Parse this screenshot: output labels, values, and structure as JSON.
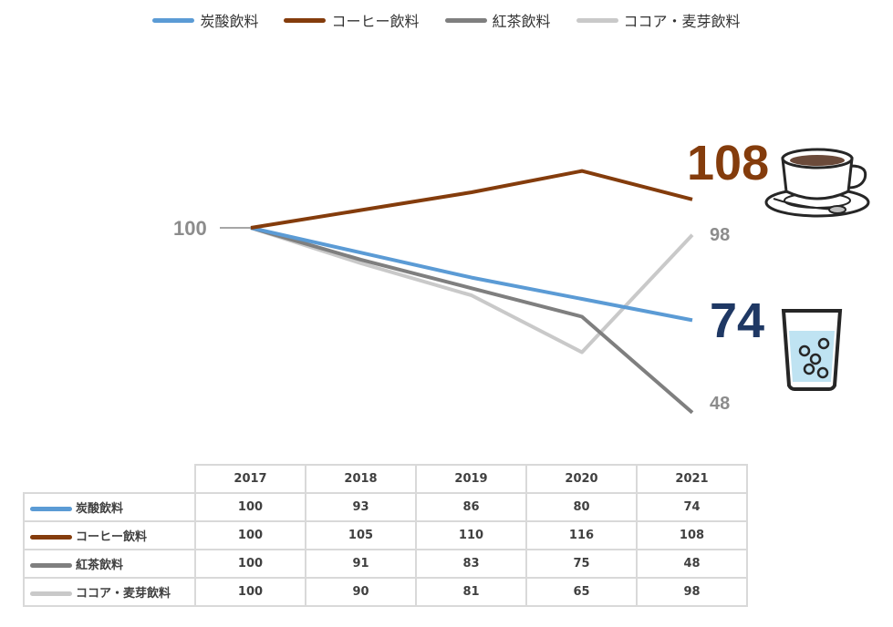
{
  "chart_data": {
    "type": "line",
    "x": [
      "2017",
      "2018",
      "2019",
      "2020",
      "2021"
    ],
    "ylim": [
      40,
      120
    ],
    "series": [
      {
        "name": "炭酸飲料",
        "color": "#5b9bd5",
        "values": [
          100,
          93,
          86,
          80,
          74
        ]
      },
      {
        "name": "コーヒー飲料",
        "color": "#843c0c",
        "values": [
          100,
          105,
          110,
          116,
          108
        ]
      },
      {
        "name": "紅茶飲料",
        "color": "#7f7f7f",
        "values": [
          100,
          91,
          83,
          75,
          48
        ]
      },
      {
        "name": "ココア・麦芽飲料",
        "color": "#c9c9c9",
        "values": [
          100,
          90,
          81,
          65,
          98
        ]
      }
    ],
    "start_label": "100",
    "end_labels": {
      "coffee": "108",
      "soda": "74",
      "cocoa": "98",
      "tea": "48"
    },
    "label_colors": {
      "coffee": "#843c0c",
      "soda": "#1f3864",
      "small": "#8c8c8c"
    },
    "legend_position": "top",
    "grid": false
  },
  "icons": [
    "coffee-cup-icon",
    "water-glass-icon"
  ]
}
